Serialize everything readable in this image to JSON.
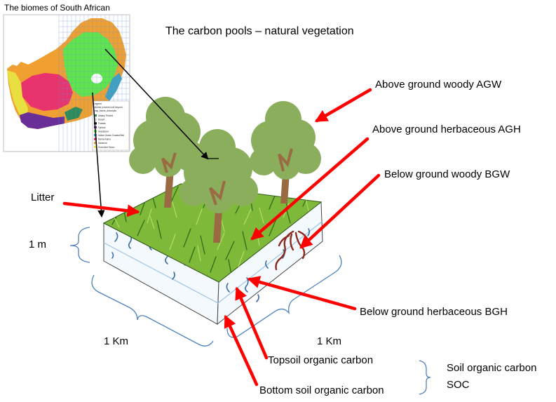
{
  "inset": {
    "title": "The biomes of South African",
    "legend_title": "Legend",
    "legend_subtitle": "biomes (covered soil beyond",
    "legend_field": "map_biome_descriptio",
    "legend_items": [
      {
        "label": "Albany Thicket",
        "color": "#2e8b57"
      },
      {
        "label": "Desert",
        "color": "#d9d9d9"
      },
      {
        "label": "Forests",
        "color": "#1a1a1a"
      },
      {
        "label": "Fynbos",
        "color": "#7a3ea1"
      },
      {
        "label": "Grassland",
        "color": "#5ee64a"
      },
      {
        "label": "Indian Ocean Coastal Belt",
        "color": "#3fa0c0"
      },
      {
        "label": "Nama-Karoo",
        "color": "#e8336d"
      },
      {
        "label": "Savanna",
        "color": "#f0a030"
      },
      {
        "label": "Succulent Karoo",
        "color": "#e8e040"
      }
    ]
  },
  "title": "The carbon pools – natural vegetation",
  "labels": {
    "agw": "Above ground woody AGW",
    "agh": "Above ground herbaceous  AGH",
    "bgw": "Below ground woody BGW",
    "litter": "Litter",
    "depth": "1 m",
    "bgh": "Below  ground herbaceous  BGH",
    "width_left": "1 Km",
    "width_right": "1 Km",
    "topsoil": "Topsoil organic carbon",
    "bottomsoil": "Bottom soil organic carbon",
    "soc_line1": "Soil organic carbon",
    "soc_line2": "SOC"
  },
  "colors": {
    "arrow": "#ff0000",
    "brace": "#4f81bd",
    "grass_light": "#8cc63f",
    "grass_dark": "#2f6b1a",
    "tree_crown": "#8aae5c",
    "trunk": "#9a6a42"
  }
}
